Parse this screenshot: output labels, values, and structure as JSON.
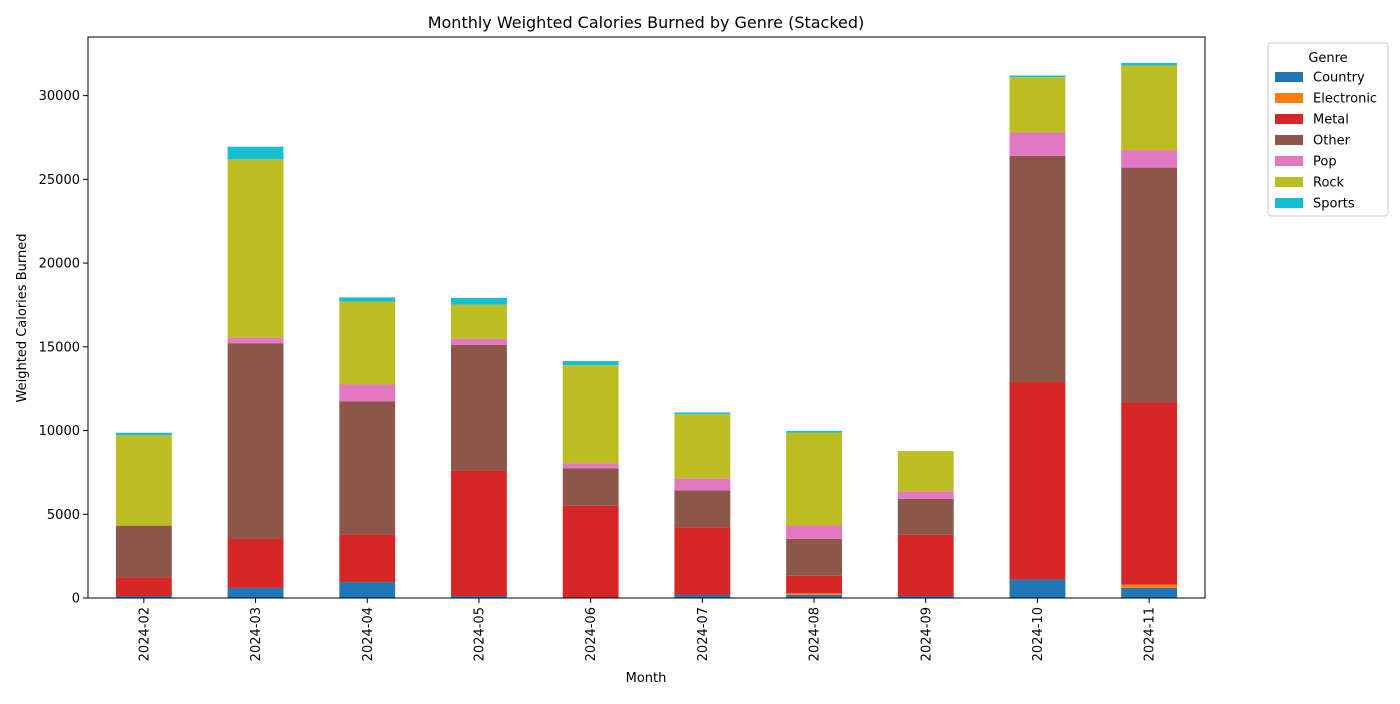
{
  "chart_data": {
    "type": "bar",
    "stacked": true,
    "title": "Monthly Weighted Calories Burned by Genre (Stacked)",
    "xlabel": "Month",
    "ylabel": "Weighted Calories Burned",
    "ylim": [
      0,
      33500
    ],
    "yticks": [
      0,
      5000,
      10000,
      15000,
      20000,
      25000,
      30000
    ],
    "grid": false,
    "legend": {
      "title": "Genre",
      "placement": "outside-top-right"
    },
    "categories": [
      "2024-02",
      "2024-03",
      "2024-04",
      "2024-05",
      "2024-06",
      "2024-07",
      "2024-08",
      "2024-09",
      "2024-10",
      "2024-11"
    ],
    "series": [
      {
        "name": "Country",
        "color": "#1f77b4",
        "values": [
          120,
          600,
          950,
          120,
          0,
          180,
          180,
          120,
          1100,
          600
        ]
      },
      {
        "name": "Electronic",
        "color": "#ff7f0e",
        "values": [
          0,
          0,
          0,
          0,
          0,
          0,
          100,
          0,
          0,
          200
        ]
      },
      {
        "name": "Metal",
        "color": "#d62728",
        "values": [
          1100,
          2950,
          2850,
          7500,
          5500,
          4050,
          1050,
          3650,
          11800,
          10900
        ]
      },
      {
        "name": "Other",
        "color": "#8c564b",
        "values": [
          3100,
          11650,
          7950,
          7500,
          2250,
          2200,
          2200,
          2150,
          13500,
          14000
        ]
      },
      {
        "name": "Pop",
        "color": "#e377c2",
        "values": [
          0,
          350,
          1000,
          350,
          300,
          700,
          800,
          450,
          1400,
          1050
        ]
      },
      {
        "name": "Rock",
        "color": "#bcbd22",
        "values": [
          5400,
          10650,
          4950,
          2050,
          5850,
          3850,
          5550,
          2400,
          3300,
          5050
        ]
      },
      {
        "name": "Sports",
        "color": "#17becf",
        "values": [
          150,
          750,
          250,
          400,
          250,
          100,
          100,
          0,
          100,
          150
        ]
      }
    ]
  }
}
